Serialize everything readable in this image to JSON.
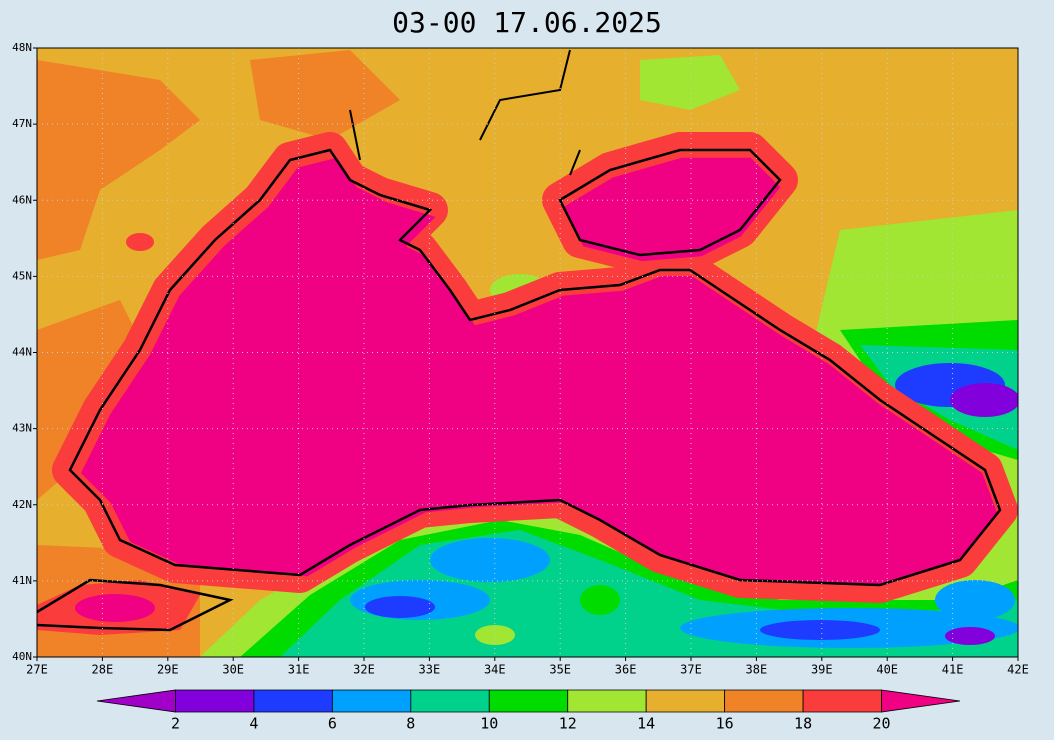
{
  "title": "03-00    17.06.2025",
  "lat_labels": [
    "48N",
    "47N",
    "46N",
    "45N",
    "44N",
    "43N",
    "42N",
    "41N",
    "40N"
  ],
  "lon_labels": [
    "27E",
    "28E",
    "29E",
    "30E",
    "31E",
    "32E",
    "33E",
    "34E",
    "35E",
    "36E",
    "37E",
    "38E",
    "39E",
    "40E",
    "41E",
    "42E"
  ],
  "colorbar": {
    "levels": [
      2,
      4,
      6,
      8,
      10,
      12,
      14,
      16,
      18,
      20
    ],
    "colors": [
      "#a000c8",
      "#8200dc",
      "#1e3cff",
      "#00a0ff",
      "#00d28c",
      "#00dc00",
      "#a0e632",
      "#e6af2d",
      "#f08228",
      "#fa3c3c",
      "#f00082"
    ]
  }
}
